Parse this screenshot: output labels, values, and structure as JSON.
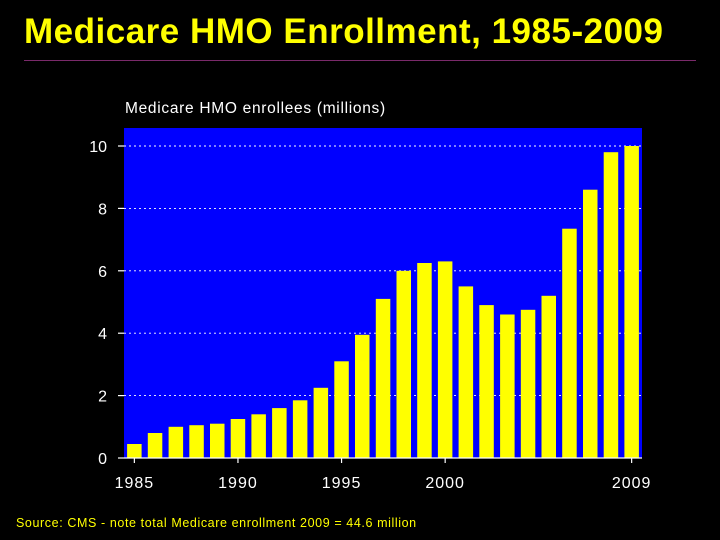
{
  "slide": {
    "title": "Medicare HMO Enrollment, 1985-2009",
    "source_note": "Source: CMS - note total Medicare enrollment 2009 = 44.6 million"
  },
  "colors": {
    "background": "#000000",
    "plot_area": "#0000ff",
    "bars": "#ffff00",
    "text": "#ffffff",
    "title": "#ffff00",
    "gridlines": "#ffffff"
  },
  "chart_data": {
    "type": "bar",
    "title": "Medicare HMO enrollees (millions)",
    "xlabel": "",
    "ylabel": "",
    "x": [
      1985,
      1986,
      1987,
      1988,
      1989,
      1990,
      1991,
      1992,
      1993,
      1994,
      1995,
      1996,
      1997,
      1998,
      1999,
      2000,
      2001,
      2002,
      2003,
      2004,
      2005,
      2006,
      2007,
      2008,
      2009
    ],
    "values": [
      0.45,
      0.8,
      1.0,
      1.05,
      1.1,
      1.25,
      1.4,
      1.6,
      1.85,
      2.25,
      3.1,
      3.95,
      5.1,
      6.0,
      6.25,
      6.3,
      5.5,
      4.9,
      4.6,
      4.75,
      5.2,
      7.35,
      8.6,
      9.8,
      10.0
    ],
    "x_tick_labels": [
      {
        "year": 1985,
        "label": "1985"
      },
      {
        "year": 1990,
        "label": "1990"
      },
      {
        "year": 1995,
        "label": "1995"
      },
      {
        "year": 2000,
        "label": "2000"
      },
      {
        "year": 2009,
        "label": "2009"
      }
    ],
    "y_ticks": [
      0,
      2,
      4,
      6,
      8,
      10
    ],
    "ylim": [
      0,
      10.5
    ],
    "grid": "horizontal dotted",
    "legend": "none"
  }
}
